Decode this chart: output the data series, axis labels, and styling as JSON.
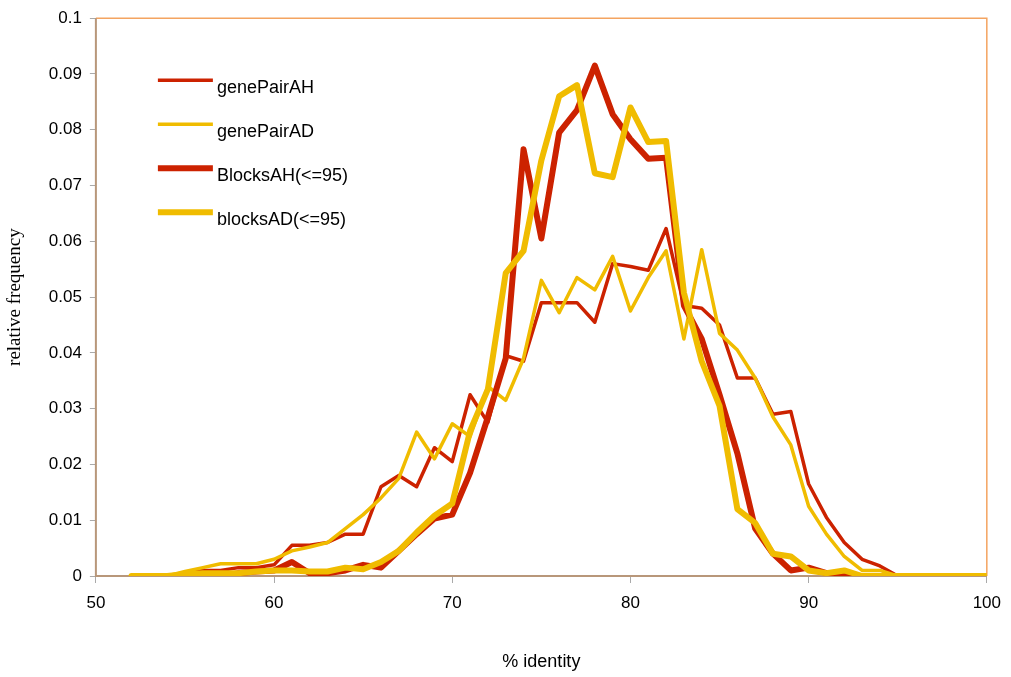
{
  "chart_data": {
    "type": "line",
    "xlabel": "% identity",
    "ylabel": "relative frequency",
    "x": [
      52,
      53,
      54,
      55,
      56,
      57,
      58,
      59,
      60,
      61,
      62,
      63,
      64,
      65,
      66,
      67,
      68,
      69,
      70,
      71,
      72,
      73,
      74,
      75,
      76,
      77,
      78,
      79,
      80,
      81,
      82,
      83,
      84,
      85,
      86,
      87,
      88,
      89,
      90,
      91,
      92,
      93,
      94,
      95,
      96,
      97,
      98,
      99,
      100
    ],
    "series": [
      {
        "name": "genePairAH",
        "color": "#cc2200",
        "values": [
          null,
          null,
          null,
          0.0005,
          0.001,
          0.001,
          0.0015,
          0.0015,
          0.002,
          0.0055,
          0.0055,
          0.006,
          0.0075,
          0.0075,
          0.016,
          0.018,
          0.016,
          0.023,
          0.0205,
          0.0325,
          0.0275,
          0.0395,
          0.0385,
          0.049,
          0.049,
          0.049,
          0.0455,
          0.056,
          0.0555,
          0.0548,
          0.0623,
          0.0485,
          0.048,
          0.045,
          0.0355,
          0.0355,
          0.029,
          0.0295,
          0.0165,
          0.0105,
          0.006,
          0.003,
          0.0018,
          0,
          null,
          null,
          null,
          null,
          null
        ]
      },
      {
        "name": "genePairAD",
        "color": "#f0bc00",
        "values": [
          0,
          0,
          0,
          0.0008,
          0.0015,
          0.0022,
          0.0022,
          0.0022,
          0.003,
          0.0045,
          0.0052,
          0.006,
          0.0085,
          0.011,
          0.014,
          0.0175,
          0.0258,
          0.021,
          0.0273,
          0.025,
          0.034,
          0.0315,
          0.039,
          0.053,
          0.0472,
          0.0535,
          0.0513,
          0.0573,
          0.0475,
          0.0535,
          0.0583,
          0.0425,
          0.0585,
          0.0435,
          0.0405,
          0.0355,
          0.0285,
          0.0235,
          0.0125,
          0.0075,
          0.0035,
          0.001,
          0.001,
          0,
          null,
          null,
          null,
          null,
          null
        ]
      },
      {
        "name": "BlocksAH(<=95)",
        "color": "#cc2200",
        "values": [
          null,
          null,
          null,
          null,
          0,
          0,
          0.0005,
          0.0008,
          0.001,
          0.0025,
          0.0005,
          0.0005,
          0.001,
          0.002,
          0.0015,
          0.0045,
          0.0075,
          0.0103,
          0.011,
          0.0185,
          0.0285,
          0.039,
          0.0765,
          0.0605,
          0.0795,
          0.0835,
          0.0915,
          0.0828,
          0.0783,
          0.0748,
          0.075,
          0.0485,
          0.0425,
          0.0325,
          0.022,
          0.0085,
          0.004,
          0.001,
          0.0015,
          0.0005,
          0,
          0,
          0,
          0,
          null,
          null,
          null,
          null,
          null
        ]
      },
      {
        "name": "blocksAD(<=95)",
        "color": "#f0bc00",
        "values": [
          0,
          0,
          0,
          0.0003,
          0.0005,
          0.0005,
          0.0005,
          0.0008,
          0.001,
          0.001,
          0.0008,
          0.0008,
          0.0015,
          0.0012,
          0.0025,
          0.0045,
          0.0078,
          0.0108,
          0.013,
          0.026,
          0.0335,
          0.0543,
          0.0583,
          0.0745,
          0.086,
          0.088,
          0.0722,
          0.0715,
          0.084,
          0.0778,
          0.078,
          0.0508,
          0.0385,
          0.0305,
          0.012,
          0.0095,
          0.004,
          0.0035,
          0.001,
          0.0005,
          0.001,
          0,
          0,
          0,
          0,
          0,
          0,
          0,
          0
        ]
      }
    ],
    "xlim": [
      50,
      100
    ],
    "xticks": [
      50,
      60,
      70,
      80,
      90,
      100
    ],
    "ylim": [
      0,
      0.1
    ],
    "yticks": [
      0,
      0.01,
      0.02,
      0.03,
      0.04,
      0.05,
      0.06,
      0.07,
      0.08,
      0.09,
      0.1
    ],
    "grid": false,
    "legend": "top left",
    "marker": "none",
    "line_style": "solid"
  }
}
